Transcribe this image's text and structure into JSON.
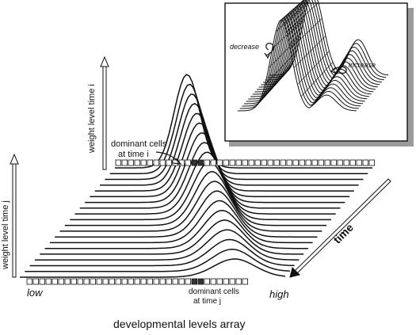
{
  "labels": {
    "weight_level_time_i": "weight level time i",
    "weight_level_time_j": "weight level time j",
    "dominant_cells_time_i_line1": "dominant cells",
    "dominant_cells_time_i_line2": "at time i",
    "dominant_cells_time_j_line1": "dominant cells",
    "dominant_cells_time_j_line2": "at time j",
    "low": "low",
    "high": "high",
    "time": "time",
    "developmental_levels_array": "developmental levels array"
  },
  "inset": {
    "decrease": "decrease",
    "increase": "increase"
  },
  "colors": {
    "ink": "#111111",
    "cell_dominant": "#333333",
    "shadow": "#9a9a9a"
  },
  "arrays": {
    "time_i": {
      "cell_count": 41,
      "dominant_cells": [
        12,
        13
      ]
    },
    "time_j": {
      "cell_count": 35,
      "dominant_cells": [
        26,
        27
      ]
    }
  }
}
